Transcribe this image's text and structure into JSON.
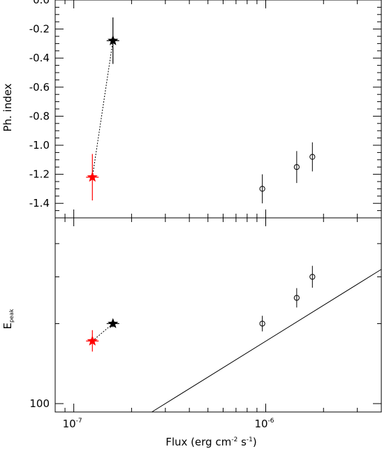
{
  "chart_data": [
    {
      "type": "scatter",
      "panel": "top",
      "ylabel": "Ph. index",
      "xscale": "log",
      "xlim": [
        8e-08,
        4e-06
      ],
      "ylim": [
        -1.5,
        0.0
      ],
      "yticks": [
        0.0,
        -0.2,
        -0.4,
        -0.6,
        -0.8,
        -1.0,
        -1.2,
        -1.4
      ],
      "ytick_labels": [
        "0.0",
        "-0.2",
        "-0.4",
        "-0.6",
        "-0.8",
        "-1.0",
        "-1.2",
        "-1.4"
      ],
      "stars": [
        {
          "x": 1.25e-07,
          "y": -1.22,
          "ylo": -1.38,
          "yhi": -1.06,
          "color": "#ff0000"
        },
        {
          "x": 1.6e-07,
          "y": -0.28,
          "ylo": -0.44,
          "yhi": -0.12,
          "color": "#000000"
        }
      ],
      "circles": [
        {
          "x": 9.6e-07,
          "y": -1.3,
          "ylo": -1.4,
          "yhi": -1.2
        },
        {
          "x": 1.45e-06,
          "y": -1.15,
          "ylo": -1.26,
          "yhi": -1.04
        },
        {
          "x": 1.75e-06,
          "y": -1.08,
          "ylo": -1.18,
          "yhi": -0.98
        }
      ]
    },
    {
      "type": "scatter",
      "panel": "bottom",
      "ylabel": "E",
      "ylabel_sub": "peak",
      "xlabel": "Flux (erg cm",
      "xlabel_exp1": "-2",
      "xlabel_mid": " s",
      "xlabel_exp2": "-1",
      "xlabel_end": ")",
      "xscale": "log",
      "yscale": "log",
      "xlim": [
        8e-08,
        4e-06
      ],
      "ylim": [
        93,
        500
      ],
      "ytick_label": "100",
      "xtick_labels": [
        {
          "mantissa": "10",
          "exp": "-7"
        },
        {
          "mantissa": "10",
          "exp": "-6"
        }
      ],
      "stars": [
        {
          "x": 1.25e-07,
          "y": 172,
          "ylo": 157,
          "yhi": 189,
          "color": "#ff0000"
        },
        {
          "x": 1.6e-07,
          "y": 200,
          "ylo": 194,
          "yhi": 206,
          "color": "#000000"
        }
      ],
      "circles": [
        {
          "x": 9.6e-07,
          "y": 200,
          "ylo": 187,
          "yhi": 214
        },
        {
          "x": 1.45e-06,
          "y": 250,
          "ylo": 230,
          "yhi": 272
        },
        {
          "x": 1.75e-06,
          "y": 300,
          "ylo": 273,
          "yhi": 330
        }
      ],
      "line": {
        "x": [
          2.55e-07,
          4e-06
        ],
        "y": [
          93,
          320
        ]
      }
    }
  ]
}
